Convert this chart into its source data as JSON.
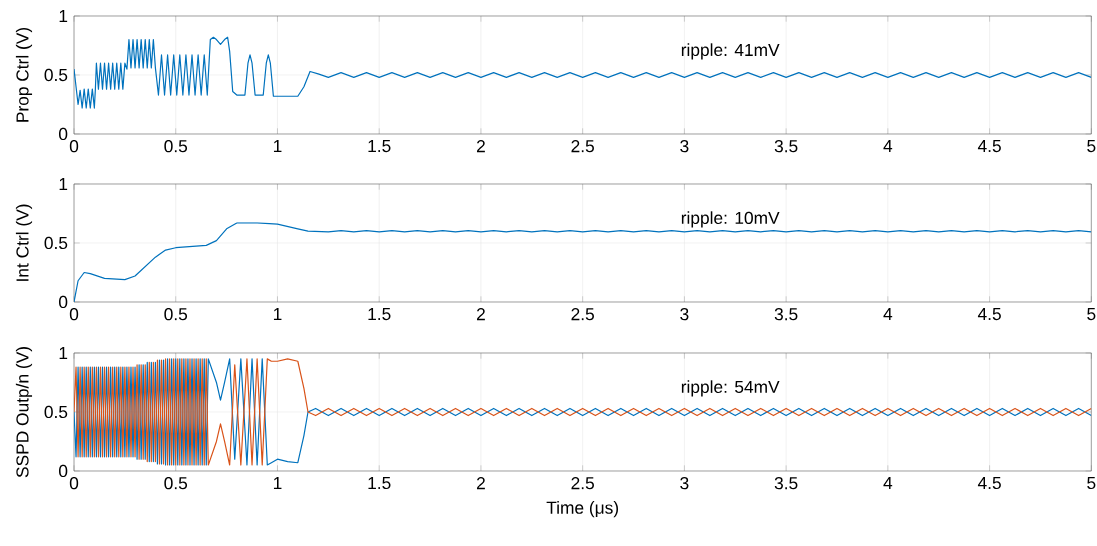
{
  "chart_data": [
    {
      "type": "line",
      "ylabel": "Prop Ctrl (V)",
      "xlim": [
        0,
        5
      ],
      "ylim": [
        0,
        1
      ],
      "xticks": [
        0,
        0.5,
        1,
        1.5,
        2,
        2.5,
        3,
        3.5,
        4,
        4.5,
        5
      ],
      "yticks": [
        0,
        0.5,
        1
      ],
      "grid": true,
      "annotations": [
        "ripple: 41mV"
      ],
      "x": [
        0,
        0.01,
        0.02,
        0.03,
        0.04,
        0.05,
        0.06,
        0.07,
        0.08,
        0.09,
        0.1,
        0.105,
        0.11,
        0.12,
        0.13,
        0.14,
        0.15,
        0.16,
        0.17,
        0.18,
        0.19,
        0.2,
        0.21,
        0.22,
        0.23,
        0.24,
        0.25,
        0.26,
        0.27,
        0.28,
        0.29,
        0.3,
        0.31,
        0.32,
        0.33,
        0.34,
        0.35,
        0.36,
        0.37,
        0.38,
        0.39,
        0.4,
        0.415,
        0.43,
        0.445,
        0.46,
        0.475,
        0.49,
        0.505,
        0.52,
        0.535,
        0.55,
        0.565,
        0.58,
        0.595,
        0.61,
        0.625,
        0.64,
        0.655,
        0.67,
        0.685,
        0.7,
        0.72,
        0.74,
        0.755,
        0.765,
        0.78,
        0.8,
        0.84,
        0.855,
        0.865,
        0.875,
        0.89,
        0.93,
        0.945,
        0.955,
        0.965,
        0.98,
        1.05,
        1.1,
        1.13,
        1.16,
        1.2,
        1.25,
        1.3125,
        1.375,
        1.4375,
        1.5,
        1.5625,
        1.625,
        1.6875,
        1.75,
        1.8125,
        1.875,
        1.9375,
        2,
        2.0625,
        2.125,
        2.1875,
        2.25,
        2.3125,
        2.375,
        2.4375,
        2.5,
        2.5625,
        2.625,
        2.6875,
        2.75,
        2.8125,
        2.875,
        2.9375,
        3,
        3.0625,
        3.125,
        3.1875,
        3.25,
        3.3125,
        3.375,
        3.4375,
        3.5,
        3.5625,
        3.625,
        3.6875,
        3.75,
        3.8125,
        3.875,
        3.9375,
        4,
        4.0625,
        4.125,
        4.1875,
        4.25,
        4.3125,
        4.375,
        4.4375,
        4.5,
        4.5625,
        4.625,
        4.6875,
        4.75,
        4.8125,
        4.875,
        4.9375,
        5
      ],
      "series": [
        {
          "color": "#0072bd",
          "line_style": "solid",
          "marker": "none",
          "values": [
            0.55,
            0.4,
            0.25,
            0.37,
            0.22,
            0.38,
            0.22,
            0.38,
            0.22,
            0.38,
            0.22,
            0.38,
            0.6,
            0.38,
            0.6,
            0.38,
            0.6,
            0.38,
            0.6,
            0.38,
            0.6,
            0.38,
            0.6,
            0.38,
            0.6,
            0.38,
            0.6,
            0.55,
            0.8,
            0.56,
            0.8,
            0.56,
            0.8,
            0.56,
            0.8,
            0.56,
            0.8,
            0.56,
            0.8,
            0.56,
            0.8,
            0.56,
            0.33,
            0.67,
            0.33,
            0.67,
            0.33,
            0.67,
            0.33,
            0.67,
            0.33,
            0.67,
            0.33,
            0.67,
            0.33,
            0.67,
            0.33,
            0.67,
            0.33,
            0.8,
            0.82,
            0.8,
            0.76,
            0.8,
            0.82,
            0.7,
            0.36,
            0.33,
            0.33,
            0.6,
            0.67,
            0.6,
            0.33,
            0.33,
            0.6,
            0.67,
            0.6,
            0.32,
            0.32,
            0.32,
            0.4,
            0.53,
            0.51,
            0.48,
            0.52,
            0.48,
            0.52,
            0.48,
            0.52,
            0.48,
            0.52,
            0.48,
            0.52,
            0.48,
            0.52,
            0.48,
            0.52,
            0.48,
            0.52,
            0.48,
            0.52,
            0.48,
            0.52,
            0.48,
            0.52,
            0.48,
            0.52,
            0.48,
            0.52,
            0.48,
            0.52,
            0.48,
            0.52,
            0.48,
            0.52,
            0.48,
            0.52,
            0.48,
            0.52,
            0.48,
            0.52,
            0.48,
            0.52,
            0.48,
            0.52,
            0.48,
            0.52,
            0.48,
            0.52,
            0.48,
            0.52,
            0.48,
            0.52,
            0.48,
            0.52,
            0.48,
            0.52,
            0.48,
            0.52,
            0.48,
            0.52,
            0.48,
            0.52,
            0.48
          ]
        }
      ]
    },
    {
      "type": "line",
      "ylabel": "Int Ctrl (V)",
      "xlim": [
        0,
        5
      ],
      "ylim": [
        0,
        1
      ],
      "xticks": [
        0,
        0.5,
        1,
        1.5,
        2,
        2.5,
        3,
        3.5,
        4,
        4.5,
        5
      ],
      "yticks": [
        0,
        0.5,
        1
      ],
      "grid": true,
      "annotations": [
        "ripple: 10mV"
      ],
      "x": [
        0,
        0.02,
        0.05,
        0.08,
        0.15,
        0.25,
        0.3,
        0.4,
        0.45,
        0.5,
        0.65,
        0.7,
        0.75,
        0.8,
        0.9,
        1,
        1.1,
        1.15,
        1.25,
        1.3125,
        1.375,
        1.4375,
        1.5,
        1.5625,
        1.625,
        1.6875,
        1.75,
        1.8125,
        1.875,
        1.9375,
        2,
        2.0625,
        2.125,
        2.1875,
        2.25,
        2.3125,
        2.375,
        2.4375,
        2.5,
        2.5625,
        2.625,
        2.6875,
        2.75,
        2.8125,
        2.875,
        2.9375,
        3,
        3.0625,
        3.125,
        3.1875,
        3.25,
        3.3125,
        3.375,
        3.4375,
        3.5,
        3.5625,
        3.625,
        3.6875,
        3.75,
        3.8125,
        3.875,
        3.9375,
        4,
        4.0625,
        4.125,
        4.1875,
        4.25,
        4.3125,
        4.375,
        4.4375,
        4.5,
        4.5625,
        4.625,
        4.6875,
        4.75,
        4.8125,
        4.875,
        4.9375,
        5
      ],
      "series": [
        {
          "color": "#0072bd",
          "line_style": "solid",
          "marker": "none",
          "values": [
            0,
            0.18,
            0.25,
            0.24,
            0.2,
            0.19,
            0.22,
            0.38,
            0.44,
            0.46,
            0.48,
            0.52,
            0.62,
            0.67,
            0.67,
            0.66,
            0.62,
            0.6,
            0.595,
            0.605,
            0.595,
            0.605,
            0.595,
            0.605,
            0.595,
            0.605,
            0.595,
            0.605,
            0.595,
            0.605,
            0.595,
            0.605,
            0.595,
            0.605,
            0.595,
            0.605,
            0.595,
            0.605,
            0.595,
            0.605,
            0.595,
            0.605,
            0.595,
            0.605,
            0.595,
            0.605,
            0.595,
            0.605,
            0.595,
            0.605,
            0.595,
            0.605,
            0.595,
            0.605,
            0.595,
            0.605,
            0.595,
            0.605,
            0.595,
            0.605,
            0.595,
            0.605,
            0.595,
            0.605,
            0.595,
            0.605,
            0.595,
            0.605,
            0.595,
            0.605,
            0.595,
            0.605,
            0.595,
            0.605,
            0.595,
            0.605,
            0.595,
            0.605,
            0.595
          ]
        }
      ]
    },
    {
      "type": "line",
      "ylabel": "SSPD Outp/n (V)",
      "xlabel": "Time (μs)",
      "xlim": [
        0,
        5
      ],
      "ylim": [
        0,
        1
      ],
      "xticks": [
        0,
        0.5,
        1,
        1.5,
        2,
        2.5,
        3,
        3.5,
        4,
        4.5,
        5
      ],
      "yticks": [
        0,
        0.5,
        1
      ],
      "grid": true,
      "annotations": [
        "ripple: 54mV"
      ],
      "x": [
        0,
        0.01,
        0.02,
        0.03,
        0.04,
        0.05,
        0.06,
        0.07,
        0.08,
        0.09,
        0.1,
        0.11,
        0.12,
        0.13,
        0.14,
        0.15,
        0.16,
        0.17,
        0.18,
        0.19,
        0.2,
        0.21,
        0.22,
        0.23,
        0.24,
        0.25,
        0.26,
        0.27,
        0.28,
        0.29,
        0.3,
        0.31,
        0.32,
        0.33,
        0.34,
        0.35,
        0.36,
        0.37,
        0.38,
        0.39,
        0.4,
        0.41,
        0.42,
        0.43,
        0.44,
        0.45,
        0.46,
        0.47,
        0.48,
        0.49,
        0.5,
        0.51,
        0.52,
        0.53,
        0.54,
        0.55,
        0.56,
        0.57,
        0.58,
        0.59,
        0.6,
        0.61,
        0.62,
        0.63,
        0.64,
        0.65,
        0.66,
        0.7,
        0.72,
        0.74,
        0.765,
        0.79,
        0.82,
        0.85,
        0.875,
        0.9,
        0.925,
        0.95,
        0.97,
        1,
        1.05,
        1.1,
        1.13,
        1.15,
        1.1875,
        1.25,
        1.3125,
        1.375,
        1.4375,
        1.5,
        1.5625,
        1.625,
        1.6875,
        1.75,
        1.8125,
        1.875,
        1.9375,
        2,
        2.0625,
        2.125,
        2.1875,
        2.25,
        2.3125,
        2.375,
        2.4375,
        2.5,
        2.5625,
        2.625,
        2.6875,
        2.75,
        2.8125,
        2.875,
        2.9375,
        3,
        3.0625,
        3.125,
        3.1875,
        3.25,
        3.3125,
        3.375,
        3.4375,
        3.5,
        3.5625,
        3.625,
        3.6875,
        3.75,
        3.8125,
        3.875,
        3.9375,
        4,
        4.0625,
        4.125,
        4.1875,
        4.25,
        4.3125,
        4.375,
        4.4375,
        4.5,
        4.5625,
        4.625,
        4.6875,
        4.75,
        4.8125,
        4.875,
        4.9375,
        5
      ],
      "series": [
        {
          "color": "#0072bd",
          "line_style": "solid",
          "marker": "none",
          "values": [
            0.5,
            0.12,
            0.88,
            0.12,
            0.88,
            0.12,
            0.88,
            0.12,
            0.88,
            0.12,
            0.88,
            0.12,
            0.88,
            0.12,
            0.88,
            0.12,
            0.88,
            0.12,
            0.88,
            0.12,
            0.88,
            0.12,
            0.88,
            0.12,
            0.88,
            0.12,
            0.88,
            0.12,
            0.88,
            0.12,
            0.88,
            0.1,
            0.9,
            0.1,
            0.9,
            0.1,
            0.92,
            0.08,
            0.92,
            0.08,
            0.92,
            0.06,
            0.94,
            0.06,
            0.94,
            0.05,
            0.95,
            0.05,
            0.95,
            0.05,
            0.95,
            0.05,
            0.95,
            0.05,
            0.95,
            0.05,
            0.95,
            0.05,
            0.95,
            0.05,
            0.95,
            0.05,
            0.95,
            0.05,
            0.95,
            0.05,
            0.95,
            0.75,
            0.6,
            0.75,
            0.95,
            0.1,
            0.95,
            0.05,
            0.95,
            0.05,
            0.95,
            0.05,
            0.07,
            0.1,
            0.08,
            0.07,
            0.3,
            0.5,
            0.53,
            0.47,
            0.53,
            0.47,
            0.53,
            0.47,
            0.53,
            0.47,
            0.53,
            0.47,
            0.53,
            0.47,
            0.53,
            0.47,
            0.53,
            0.47,
            0.53,
            0.47,
            0.53,
            0.47,
            0.53,
            0.47,
            0.53,
            0.47,
            0.53,
            0.47,
            0.53,
            0.47,
            0.53,
            0.47,
            0.53,
            0.47,
            0.53,
            0.47,
            0.53,
            0.47,
            0.53,
            0.47,
            0.53,
            0.47,
            0.53,
            0.47,
            0.53,
            0.47,
            0.53,
            0.47,
            0.53,
            0.47,
            0.53,
            0.47,
            0.53,
            0.47,
            0.53,
            0.47,
            0.53,
            0.47,
            0.53,
            0.47,
            0.53,
            0.47,
            0.53,
            0.47
          ]
        },
        {
          "color": "#d95319",
          "line_style": "solid",
          "marker": "none",
          "values": [
            0.5,
            0.88,
            0.12,
            0.88,
            0.12,
            0.88,
            0.12,
            0.88,
            0.12,
            0.88,
            0.12,
            0.88,
            0.12,
            0.88,
            0.12,
            0.88,
            0.12,
            0.88,
            0.12,
            0.88,
            0.12,
            0.88,
            0.12,
            0.88,
            0.12,
            0.88,
            0.12,
            0.88,
            0.12,
            0.88,
            0.12,
            0.9,
            0.1,
            0.9,
            0.1,
            0.9,
            0.08,
            0.92,
            0.08,
            0.92,
            0.08,
            0.94,
            0.06,
            0.94,
            0.06,
            0.95,
            0.05,
            0.95,
            0.05,
            0.95,
            0.05,
            0.95,
            0.05,
            0.95,
            0.05,
            0.95,
            0.05,
            0.95,
            0.05,
            0.95,
            0.05,
            0.95,
            0.05,
            0.95,
            0.05,
            0.95,
            0.05,
            0.25,
            0.4,
            0.25,
            0.05,
            0.9,
            0.05,
            0.95,
            0.05,
            0.95,
            0.05,
            0.95,
            0.93,
            0.93,
            0.95,
            0.93,
            0.7,
            0.5,
            0.47,
            0.53,
            0.47,
            0.53,
            0.47,
            0.53,
            0.47,
            0.53,
            0.47,
            0.53,
            0.47,
            0.53,
            0.47,
            0.53,
            0.47,
            0.53,
            0.47,
            0.53,
            0.47,
            0.53,
            0.47,
            0.53,
            0.47,
            0.53,
            0.47,
            0.53,
            0.47,
            0.53,
            0.47,
            0.53,
            0.47,
            0.53,
            0.47,
            0.53,
            0.47,
            0.53,
            0.47,
            0.53,
            0.47,
            0.53,
            0.47,
            0.53,
            0.47,
            0.53,
            0.47,
            0.53,
            0.47,
            0.53,
            0.47,
            0.53,
            0.47,
            0.53,
            0.47,
            0.53,
            0.47,
            0.53,
            0.47,
            0.53,
            0.47,
            0.53,
            0.47,
            0.53
          ]
        }
      ]
    }
  ]
}
